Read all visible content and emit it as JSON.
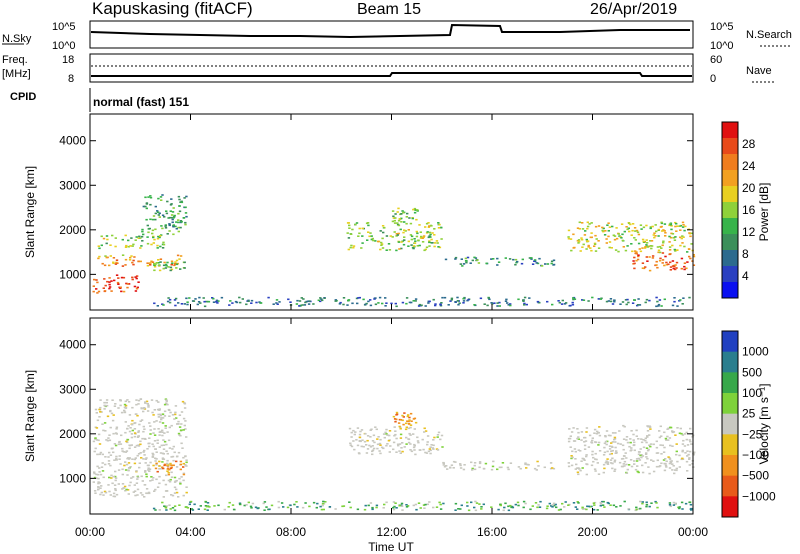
{
  "header": {
    "station": "Kapuskasing (fitACF)",
    "beam": "Beam 15",
    "date": "26/Apr/2019"
  },
  "status_panels": {
    "nsky_label": "N.Sky",
    "nsky_ticks": [
      "10^5",
      "10^0"
    ],
    "nsearch_label": "N.Search",
    "nsearch_ticks": [
      "10^5",
      "10^0"
    ],
    "freq_label_line1": "Freq.",
    "freq_label_line2": "[MHz]",
    "freq_ticks": [
      "18",
      "8"
    ],
    "nave_label": "Nave",
    "nave_ticks": [
      "60",
      "0"
    ],
    "cpid_label": "CPID",
    "cpid_value": "normal (fast) 151"
  },
  "chart_data": [
    {
      "type": "heatmap",
      "name": "power",
      "ylabel": "Slant Range [km]",
      "yticks": [
        "1000",
        "2000",
        "3000",
        "4000"
      ],
      "ylim": [
        200,
        4600
      ],
      "xlim": [
        0,
        24
      ],
      "colorbar_label": "Power [dB]",
      "colorbar_ticks": [
        "4",
        "8",
        "12",
        "16",
        "20",
        "24",
        "28"
      ],
      "colorbar_range": [
        0,
        32
      ],
      "colors": [
        "#0a10f0",
        "#2a40c0",
        "#2c6b8e",
        "#3b8f5a",
        "#37b34a",
        "#8fd13a",
        "#e8d020",
        "#f2a020",
        "#f07d1e",
        "#e84a1a",
        "#e01010"
      ],
      "regions": [
        {
          "t": [
            0.1,
            2.0
          ],
          "r": [
            600,
            1000
          ],
          "v": 28
        },
        {
          "t": [
            0.2,
            3.6
          ],
          "r": [
            1200,
            1450
          ],
          "v": 22
        },
        {
          "t": [
            0.3,
            3.0
          ],
          "r": [
            1600,
            1900
          ],
          "v": 16
        },
        {
          "t": [
            2.0,
            3.8
          ],
          "r": [
            1900,
            2800
          ],
          "v": 12
        },
        {
          "t": [
            2.5,
            3.8
          ],
          "r": [
            1100,
            1300
          ],
          "v": 14
        },
        {
          "t": [
            10.2,
            14.0
          ],
          "r": [
            1550,
            2200
          ],
          "v": 16
        },
        {
          "t": [
            12.0,
            13.0
          ],
          "r": [
            2200,
            2500
          ],
          "v": 14
        },
        {
          "t": [
            14.0,
            18.5
          ],
          "r": [
            1200,
            1400
          ],
          "v": 10
        },
        {
          "t": [
            19.0,
            24.0
          ],
          "r": [
            1500,
            2200
          ],
          "v": 18
        },
        {
          "t": [
            21.5,
            24.0
          ],
          "r": [
            1100,
            1500
          ],
          "v": 26
        },
        {
          "t": [
            2.5,
            24.0
          ],
          "r": [
            300,
            500
          ],
          "v": 8
        }
      ]
    },
    {
      "type": "heatmap",
      "name": "velocity",
      "ylabel": "Slant Range [km]",
      "yticks": [
        "1000",
        "2000",
        "3000",
        "4000"
      ],
      "ylim": [
        200,
        4600
      ],
      "xlim": [
        0,
        24
      ],
      "xticks": [
        "00:00",
        "04:00",
        "08:00",
        "12:00",
        "16:00",
        "20:00",
        "00:00"
      ],
      "xlabel": "Time UT",
      "colorbar_label": "Velocity [m s⁻¹]",
      "colorbar_ticks": [
        "1000",
        "500",
        "100",
        "25",
        "−25",
        "−100",
        "−500",
        "−1000"
      ],
      "colors": [
        "#2040c0",
        "#2a7e8e",
        "#37a84a",
        "#7ed23a",
        "#c8c8c0",
        "#e8c020",
        "#f0901e",
        "#e85a1a",
        "#e01010"
      ],
      "regions": [
        {
          "t": [
            0.1,
            3.8
          ],
          "r": [
            600,
            2800
          ],
          "v": 0
        },
        {
          "t": [
            2.5,
            3.8
          ],
          "r": [
            1100,
            1400
          ],
          "v": -300
        },
        {
          "t": [
            10.2,
            14.0
          ],
          "r": [
            1550,
            2200
          ],
          "v": 0
        },
        {
          "t": [
            12.0,
            13.0
          ],
          "r": [
            2200,
            2500
          ],
          "v": -400
        },
        {
          "t": [
            14.0,
            18.5
          ],
          "r": [
            1200,
            1400
          ],
          "v": 0
        },
        {
          "t": [
            19.0,
            24.0
          ],
          "r": [
            1100,
            2200
          ],
          "v": 0
        },
        {
          "t": [
            2.5,
            24.0
          ],
          "r": [
            300,
            500
          ],
          "v": 80
        }
      ]
    }
  ]
}
